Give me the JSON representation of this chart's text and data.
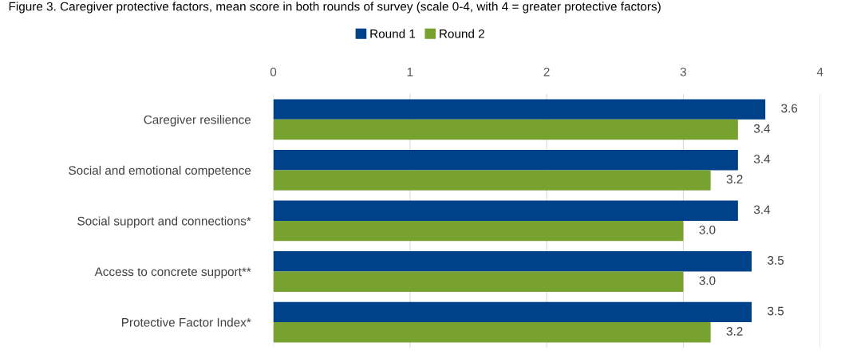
{
  "chart_data": {
    "type": "bar",
    "orientation": "horizontal",
    "title": "Figure 3. Caregiver protective factors, mean score in both rounds of survey (scale 0-4, with 4 = greater protective factors)",
    "categories": [
      "Caregiver resilience",
      "Social and emotional competence",
      "Social support and connections*",
      "Access to concrete support**",
      "Protective Factor Index*"
    ],
    "series": [
      {
        "name": "Round 1",
        "color": "#00428a",
        "values": [
          3.6,
          3.4,
          3.4,
          3.5,
          3.5
        ],
        "value_labels": [
          "3.6",
          "3.4",
          "3.4",
          "3.5",
          "3.5"
        ]
      },
      {
        "name": "Round 2",
        "color": "#78a22f",
        "values": [
          3.4,
          3.2,
          3.0,
          3.0,
          3.2
        ],
        "value_labels": [
          "3.4",
          "3.2",
          "3.0",
          "3.0",
          "3.2"
        ]
      }
    ],
    "xlim": [
      0,
      4
    ],
    "xticks": [
      0,
      1,
      2,
      3,
      4
    ],
    "grid": "x",
    "legend": "top"
  }
}
